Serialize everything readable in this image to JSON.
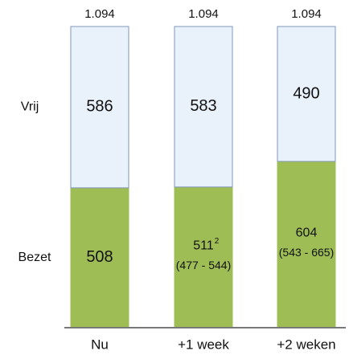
{
  "chart_data": {
    "type": "stacked_bar",
    "categories": [
      "Nu",
      "+1 week",
      "+2 weken"
    ],
    "series": [
      {
        "name": "Bezet",
        "color": "#9fbd55",
        "values": [
          508,
          511,
          604
        ]
      },
      {
        "name": "Vrij",
        "color": "#e9f1fb",
        "values": [
          586,
          583,
          490
        ]
      }
    ],
    "totals": [
      {
        "value": 1094,
        "label": "1.094"
      },
      {
        "value": 1094,
        "label": "1.094"
      },
      {
        "value": 1094,
        "label": "1.094"
      }
    ],
    "annotations": [
      {
        "category": "+1 week",
        "superscript": "2",
        "range": "(477 - 544)"
      },
      {
        "category": "+2 weken",
        "range": "(543 - 665)"
      }
    ],
    "ylim": [
      0,
      1094
    ]
  }
}
